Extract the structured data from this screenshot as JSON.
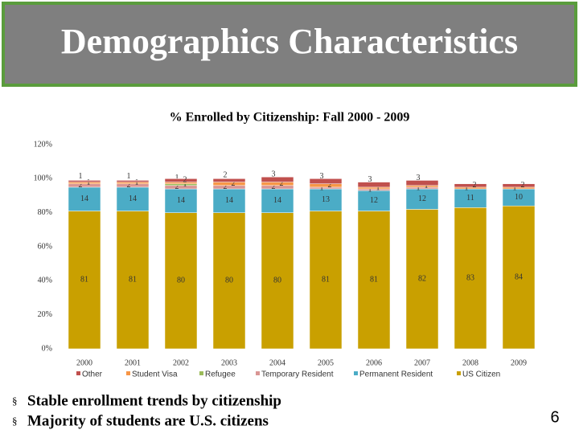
{
  "slide_title": "Demographics Characteristics",
  "bullets": [
    "Stable enrollment trends by citizenship",
    "Majority of students are U.S. citizens"
  ],
  "page_number": "6",
  "chart_data": {
    "type": "stacked_bar",
    "title": "% Enrolled by Citizenship: Fall 2000 - 2009",
    "categories": [
      "2000",
      "2001",
      "2002",
      "2003",
      "2004",
      "2005",
      "2006",
      "2007",
      "2008",
      "2009"
    ],
    "series": [
      {
        "name": "US Citizen",
        "color": "#C9A000",
        "values": [
          81,
          81,
          80,
          80,
          80,
          81,
          81,
          82,
          83,
          84
        ]
      },
      {
        "name": "Permanent Resident",
        "color": "#4BACC6",
        "values": [
          14,
          14,
          14,
          14,
          14,
          13,
          12,
          12,
          11,
          10
        ]
      },
      {
        "name": "Temporary Resident",
        "color": "#D99694",
        "values": [
          2,
          2,
          2,
          2,
          2,
          1,
          1,
          1,
          null,
          null
        ]
      },
      {
        "name": "Refugee",
        "color": "#9BBB59",
        "values": [
          null,
          null,
          1,
          null,
          null,
          null,
          null,
          null,
          null,
          null
        ]
      },
      {
        "name": "Student Visa",
        "color": "#F79646",
        "values": [
          1,
          1,
          1,
          2,
          2,
          2,
          1,
          1,
          1,
          1
        ]
      },
      {
        "name": "Other",
        "color": "#C0504D",
        "values": [
          1,
          1,
          2,
          2,
          3,
          3,
          3,
          3,
          2,
          2
        ]
      }
    ],
    "legend_order": [
      5,
      4,
      3,
      2,
      1,
      0
    ],
    "ylim": [
      0,
      120
    ],
    "yticks": [
      {
        "value": 0,
        "label": "0%"
      },
      {
        "value": 20,
        "label": "20%"
      },
      {
        "value": 40,
        "label": "40%"
      },
      {
        "value": 60,
        "label": "60%"
      },
      {
        "value": 80,
        "label": "80%"
      },
      {
        "value": 100,
        "label": "100%"
      },
      {
        "value": 120,
        "label": "120%"
      }
    ],
    "grid": false
  }
}
